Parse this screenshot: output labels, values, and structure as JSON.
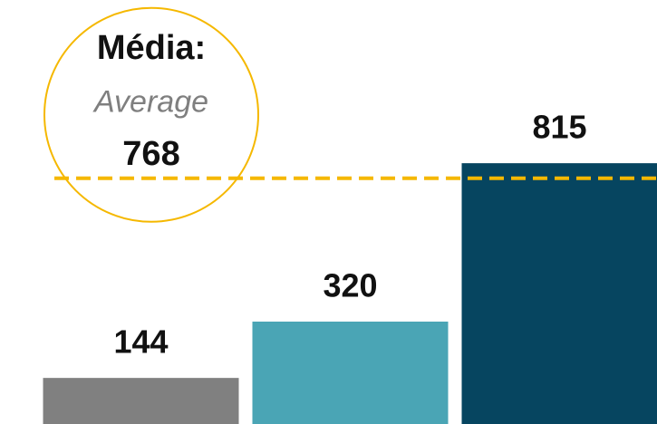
{
  "chart_data": {
    "type": "bar",
    "categories": [
      null,
      null,
      null
    ],
    "values": [
      144,
      320,
      815
    ],
    "colors": [
      "#808080",
      "#4aa5b5",
      "#064560"
    ],
    "ylim": [
      0,
      1325
    ],
    "average": {
      "label": "Média:",
      "sublabel": "Average",
      "value": 768,
      "color": "#f5b800"
    }
  }
}
